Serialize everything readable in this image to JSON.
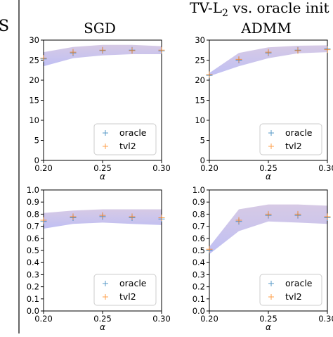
{
  "header": {
    "left_fragment": "S",
    "top_title_main": "TV-L",
    "top_title_sub": "2",
    "top_title_rest": " vs. oracle init"
  },
  "colors": {
    "oracle": "#1f77b4",
    "tvl2": "#ff7f0e",
    "band_top": "#c9b8dc",
    "band_bottom": "#aaaaf0"
  },
  "chart_data": [
    {
      "type": "scatter",
      "title": "SGD",
      "xlabel": "α",
      "ylabel": "",
      "xlim": [
        0.2,
        0.3
      ],
      "ylim": [
        0,
        30
      ],
      "xticks": [
        "0.20",
        "0.25",
        "0.30"
      ],
      "yticks": [
        "0",
        "5",
        "10",
        "15",
        "20",
        "25",
        "30"
      ],
      "legend": {
        "position": "lower-right",
        "entries": [
          "oracle",
          "tvl2"
        ]
      },
      "band": {
        "x": [
          0.2,
          0.225,
          0.25,
          0.275,
          0.3
        ],
        "low": [
          23.5,
          25.5,
          26.2,
          26.5,
          26.5
        ],
        "high": [
          27.0,
          28.3,
          28.8,
          28.8,
          28.5
        ]
      },
      "series": [
        {
          "name": "oracle",
          "x": [
            0.2,
            0.225,
            0.25,
            0.275,
            0.3
          ],
          "y": [
            25.3,
            26.8,
            27.4,
            27.5,
            27.3
          ]
        },
        {
          "name": "tvl2",
          "x": [
            0.2,
            0.225,
            0.25,
            0.275,
            0.3
          ],
          "y": [
            25.5,
            27.0,
            27.5,
            27.4,
            27.5
          ]
        }
      ]
    },
    {
      "type": "scatter",
      "title": "ADMM",
      "xlabel": "α",
      "ylabel": "",
      "xlim": [
        0.2,
        0.3
      ],
      "ylim": [
        0,
        30
      ],
      "xticks": [
        "0.20",
        "0.25",
        "0.30"
      ],
      "yticks": [
        "0",
        "5",
        "10",
        "15",
        "20",
        "25",
        "30"
      ],
      "legend": {
        "position": "lower-right",
        "entries": [
          "oracle",
          "tvl2"
        ]
      },
      "band": {
        "x": [
          0.2,
          0.225,
          0.25,
          0.275,
          0.3
        ],
        "low": [
          21.0,
          23.5,
          25.5,
          26.7,
          27.0
        ],
        "high": [
          21.8,
          26.8,
          28.2,
          28.6,
          28.7
        ]
      },
      "series": [
        {
          "name": "oracle",
          "x": [
            0.2,
            0.225,
            0.25,
            0.275,
            0.3
          ],
          "y": [
            21.2,
            25.0,
            26.8,
            27.5,
            27.8
          ]
        },
        {
          "name": "tvl2",
          "x": [
            0.2,
            0.225,
            0.25,
            0.275,
            0.3
          ],
          "y": [
            21.4,
            25.2,
            27.0,
            27.4,
            27.6
          ]
        }
      ]
    },
    {
      "type": "scatter",
      "title": "",
      "xlabel": "α",
      "ylabel": "",
      "xlim": [
        0.2,
        0.3
      ],
      "ylim": [
        0,
        1.0
      ],
      "xticks": [
        "0.20",
        "0.25",
        "0.30"
      ],
      "yticks": [
        "0.0",
        "0.1",
        "0.2",
        "0.3",
        "0.4",
        "0.5",
        "0.6",
        "0.7",
        "0.8",
        "0.9",
        "1.0"
      ],
      "legend": {
        "position": "lower-right",
        "entries": [
          "oracle",
          "tvl2"
        ]
      },
      "band": {
        "x": [
          0.2,
          0.225,
          0.25,
          0.275,
          0.3
        ],
        "low": [
          0.68,
          0.72,
          0.73,
          0.72,
          0.71
        ],
        "high": [
          0.81,
          0.83,
          0.84,
          0.84,
          0.84
        ]
      },
      "series": [
        {
          "name": "oracle",
          "x": [
            0.2,
            0.225,
            0.25,
            0.275,
            0.3
          ],
          "y": [
            0.74,
            0.77,
            0.78,
            0.77,
            0.76
          ]
        },
        {
          "name": "tvl2",
          "x": [
            0.2,
            0.225,
            0.25,
            0.275,
            0.3
          ],
          "y": [
            0.75,
            0.78,
            0.79,
            0.78,
            0.77
          ]
        }
      ]
    },
    {
      "type": "scatter",
      "title": "",
      "xlabel": "α",
      "ylabel": "",
      "xlim": [
        0.2,
        0.3
      ],
      "ylim": [
        0,
        1.0
      ],
      "xticks": [
        "0.20",
        "0.25",
        "0.30"
      ],
      "yticks": [
        "0.0",
        "0.1",
        "0.2",
        "0.3",
        "0.4",
        "0.5",
        "0.6",
        "0.7",
        "0.8",
        "0.9",
        "1.0"
      ],
      "legend": {
        "position": "lower-right",
        "entries": [
          "oracle",
          "tvl2"
        ]
      },
      "band": {
        "x": [
          0.2,
          0.225,
          0.25,
          0.275,
          0.3
        ],
        "low": [
          0.47,
          0.66,
          0.74,
          0.73,
          0.72
        ],
        "high": [
          0.53,
          0.84,
          0.88,
          0.88,
          0.87
        ]
      },
      "series": [
        {
          "name": "oracle",
          "x": [
            0.2,
            0.225,
            0.25,
            0.275,
            0.3
          ],
          "y": [
            0.5,
            0.74,
            0.79,
            0.79,
            0.77
          ]
        },
        {
          "name": "tvl2",
          "x": [
            0.2,
            0.225,
            0.25,
            0.275,
            0.3
          ],
          "y": [
            0.51,
            0.75,
            0.8,
            0.8,
            0.78
          ]
        }
      ]
    }
  ]
}
